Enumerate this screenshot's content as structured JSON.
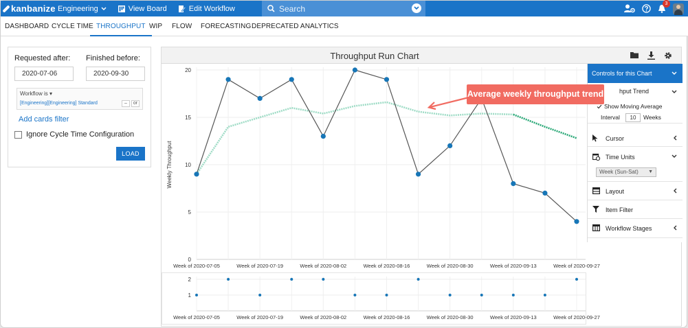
{
  "app": {
    "brand": "kanbanize",
    "workspace": "Engineering",
    "view_board": "View Board",
    "edit_workflow": "Edit Workflow",
    "search_placeholder": "Search",
    "notifications_count": "3"
  },
  "tabs": [
    "DASHBOARD",
    "CYCLE TIME",
    "THROUGHPUT",
    "WIP",
    "FLOW",
    "FORECASTING",
    "DEPRECATED ANALYTICS"
  ],
  "active_tab": "THROUGHPUT",
  "filters": {
    "requested_after_label": "Requested after:",
    "requested_after_value": "2020-07-06",
    "finished_before_label": "Finished before:",
    "finished_before_value": "2020-09-30",
    "workflow_label": "Workflow is",
    "workflow_value": "[Engineering][Engineering] Standard",
    "workflow_btn_minus": "–",
    "workflow_btn_or": "or",
    "add_cards_filter": "Add cards filter",
    "ignore_cycle_time": "Ignore Cycle Time Configuration",
    "load": "LOAD"
  },
  "chart_panel": {
    "title": "Throughput Run Chart"
  },
  "controls": {
    "header": "Controls for this Chart",
    "trend_label": "hput Trend",
    "show_moving_average": "Show Moving Average",
    "interval_label": "Interval",
    "interval_value": "10",
    "weeks_label": "Weeks",
    "cursor": "Cursor",
    "time_units": "Time Units",
    "time_units_value": "Week (Sun-Sat)",
    "layout": "Layout",
    "item_filter": "Item Filter",
    "workflow_stages": "Workflow Stages"
  },
  "annotation": "Average weekly throughput trend",
  "chart_data": [
    {
      "type": "line",
      "ylabel": "Weekly Throughput",
      "ylim": [
        0,
        20
      ],
      "yticks": [
        0,
        5,
        10,
        15,
        20
      ],
      "xtick_labels": [
        "Week of 2020-07-05",
        "Week of 2020-07-19",
        "Week of 2020-08-02",
        "Week of 2020-08-16",
        "Week of 2020-08-30",
        "Week of 2020-09-13",
        "Week of 2020-09-27"
      ],
      "x": [
        "2020-07-05",
        "2020-07-12",
        "2020-07-19",
        "2020-07-26",
        "2020-08-02",
        "2020-08-09",
        "2020-08-16",
        "2020-08-23",
        "2020-08-30",
        "2020-09-06",
        "2020-09-13",
        "2020-09-20",
        "2020-09-27"
      ],
      "series": [
        {
          "values": [
            9,
            19,
            17,
            19,
            13,
            20,
            19,
            9,
            12,
            17,
            8,
            7,
            4
          ]
        },
        {
          "values": [
            9,
            14,
            15,
            16,
            15.4,
            16.2,
            16.6,
            15.6,
            15.2,
            15.4,
            15.3,
            14,
            12.8
          ]
        }
      ],
      "grid": true
    },
    {
      "type": "scatter",
      "ylim": [
        0,
        2
      ],
      "yticks": [
        1,
        2
      ],
      "xtick_labels": [
        "Week of 2020-07-05",
        "Week of 2020-07-19",
        "Week of 2020-08-02",
        "Week of 2020-08-16",
        "Week of 2020-08-30",
        "Week of 2020-09-13",
        "Week of 2020-09-27"
      ],
      "x": [
        "2020-07-05",
        "2020-07-12",
        "2020-07-19",
        "2020-07-26",
        "2020-08-02",
        "2020-08-09",
        "2020-08-16",
        "2020-08-23",
        "2020-08-30",
        "2020-09-06",
        "2020-09-13",
        "2020-09-20",
        "2020-09-27"
      ],
      "values": [
        1,
        2,
        1,
        2,
        2,
        1,
        1,
        2,
        1,
        1,
        1,
        1,
        2
      ]
    }
  ],
  "colors": {
    "brand": "#1a74c8",
    "run_line": "#555555",
    "point": "#1776b7",
    "trend": "#9fdcc6",
    "trend_forecast": "#2aa877",
    "callout": "#f16b61"
  }
}
